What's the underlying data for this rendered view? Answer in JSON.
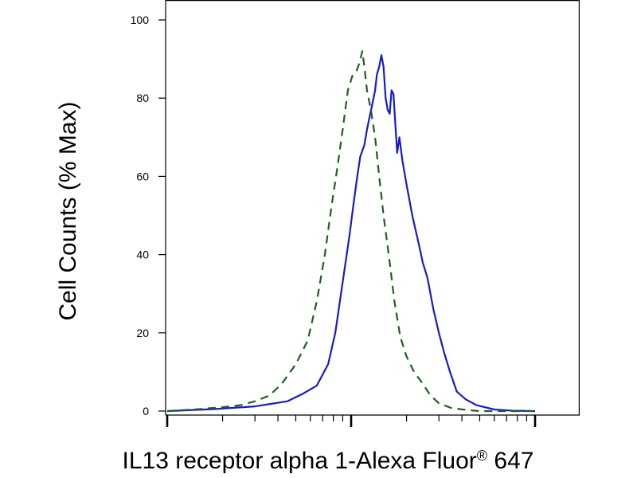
{
  "chart_data": {
    "type": "line",
    "xlabel": "IL13 receptor alpha 1-Alexa Fluor",
    "xlabel_mark": "®",
    "xlabel_suffix": " 647",
    "ylabel": "Cell Counts (% Max)",
    "x_scale": "log",
    "xlim": [
      0.1,
      10
    ],
    "ylim": [
      0,
      100
    ],
    "y_ticks": [
      0,
      20,
      40,
      60,
      80,
      100
    ],
    "x_major_ticks": [
      0.1,
      1,
      10
    ],
    "x_minor_ticks": [
      0.2,
      0.3,
      0.4,
      0.5,
      0.6,
      0.7,
      0.8,
      0.9,
      2,
      3,
      4,
      5,
      6,
      7,
      8,
      9
    ],
    "grid": false,
    "legend": "none",
    "series": [
      {
        "color": "#1a1ac8",
        "dash": "solid",
        "points": [
          [
            0.1,
            0
          ],
          [
            0.18,
            0.5
          ],
          [
            0.3,
            1.2
          ],
          [
            0.45,
            2.5
          ],
          [
            0.55,
            4.5
          ],
          [
            0.65,
            6.5
          ],
          [
            0.75,
            12
          ],
          [
            0.82,
            20
          ],
          [
            0.9,
            33
          ],
          [
            0.98,
            45
          ],
          [
            1.03,
            53
          ],
          [
            1.08,
            60
          ],
          [
            1.12,
            65
          ],
          [
            1.18,
            68
          ],
          [
            1.22,
            72
          ],
          [
            1.27,
            76
          ],
          [
            1.31,
            79
          ],
          [
            1.35,
            82
          ],
          [
            1.38,
            86
          ],
          [
            1.42,
            88
          ],
          [
            1.46,
            91
          ],
          [
            1.5,
            88
          ],
          [
            1.54,
            80
          ],
          [
            1.58,
            77
          ],
          [
            1.62,
            76
          ],
          [
            1.66,
            82
          ],
          [
            1.7,
            81
          ],
          [
            1.74,
            73
          ],
          [
            1.78,
            66
          ],
          [
            1.83,
            70
          ],
          [
            1.9,
            64
          ],
          [
            2.0,
            58
          ],
          [
            2.15,
            50
          ],
          [
            2.35,
            42
          ],
          [
            2.45,
            38
          ],
          [
            2.6,
            34
          ],
          [
            2.8,
            26
          ],
          [
            3.0,
            20
          ],
          [
            3.2,
            15
          ],
          [
            3.45,
            10
          ],
          [
            3.75,
            5
          ],
          [
            4.2,
            3
          ],
          [
            4.8,
            1.5
          ],
          [
            6.0,
            0.4
          ],
          [
            7.5,
            0.1
          ],
          [
            10,
            0
          ]
        ]
      },
      {
        "color": "#1f5f1f",
        "dash": "dashed",
        "points": [
          [
            0.1,
            0
          ],
          [
            0.15,
            0.5
          ],
          [
            0.2,
            1
          ],
          [
            0.25,
            1.5
          ],
          [
            0.3,
            2.5
          ],
          [
            0.36,
            4
          ],
          [
            0.42,
            7
          ],
          [
            0.5,
            12
          ],
          [
            0.58,
            18
          ],
          [
            0.65,
            28
          ],
          [
            0.72,
            40
          ],
          [
            0.78,
            52
          ],
          [
            0.84,
            62
          ],
          [
            0.9,
            72
          ],
          [
            0.96,
            82
          ],
          [
            1.02,
            86
          ],
          [
            1.07,
            87
          ],
          [
            1.11,
            89
          ],
          [
            1.15,
            92
          ],
          [
            1.18,
            88
          ],
          [
            1.22,
            82
          ],
          [
            1.28,
            77
          ],
          [
            1.35,
            70
          ],
          [
            1.42,
            60
          ],
          [
            1.5,
            50
          ],
          [
            1.6,
            40
          ],
          [
            1.72,
            28
          ],
          [
            1.85,
            19
          ],
          [
            2.0,
            14
          ],
          [
            2.2,
            10
          ],
          [
            2.45,
            7
          ],
          [
            2.7,
            4
          ],
          [
            3.0,
            2
          ],
          [
            3.5,
            0.8
          ],
          [
            4.2,
            0.3
          ],
          [
            5.0,
            0
          ],
          [
            10,
            0
          ]
        ]
      }
    ]
  }
}
